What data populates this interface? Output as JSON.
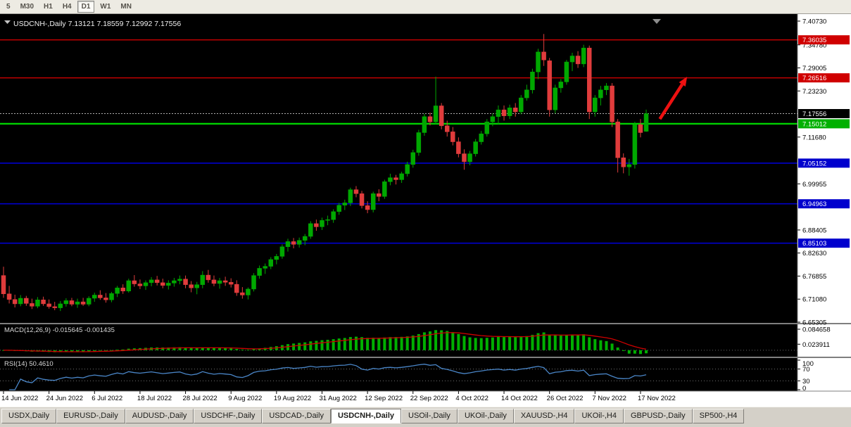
{
  "toolbar": {
    "timeframes": [
      {
        "label": "5",
        "active": false
      },
      {
        "label": "M30",
        "active": false
      },
      {
        "label": "H1",
        "active": false
      },
      {
        "label": "H4",
        "active": false
      },
      {
        "label": "D1",
        "active": true
      },
      {
        "label": "W1",
        "active": false
      },
      {
        "label": "MN",
        "active": false
      }
    ]
  },
  "chart": {
    "title": "USDCNH-,Daily",
    "quote_ohlc": "7.13121 7.18559 7.12992 7.17556",
    "colors": {
      "background": "#000000",
      "bull": "#00a800",
      "bear": "#e03c3c",
      "axis_bg": "#ffffff",
      "axis_text": "#000000",
      "separator": "#7f7f7f",
      "macd_histogram": "#00b000",
      "macd_signal": "#d00000",
      "rsi_line": "#4a86c8",
      "title_text": "#f0f0f0",
      "panel_label_text": "#d9d9d9"
    },
    "hlines": [
      {
        "value": "7.36035",
        "color": "#cc0000",
        "width": 1.4
      },
      {
        "value": "7.26516",
        "color": "#cc0000",
        "width": 1.4
      },
      {
        "value": "7.15012",
        "color": "#00d200",
        "width": 2.4
      },
      {
        "value": "7.05152",
        "color": "#0000cd",
        "width": 1.6
      },
      {
        "value": "6.94963",
        "color": "#0000cd",
        "width": 1.6
      },
      {
        "value": "6.85103",
        "color": "#0000cd",
        "width": 1.6
      }
    ],
    "bid_line": {
      "value": "7.17556",
      "color": "#b0b0b0"
    },
    "price_axis_labels": [
      "7.40730",
      "7.34780",
      "7.29005",
      "7.23230",
      "7.11680",
      "6.99955",
      "6.88405",
      "6.82630",
      "6.76855",
      "6.71080",
      "6.65305"
    ],
    "price_badges": [
      {
        "value": "7.36035",
        "color": "#d00000"
      },
      {
        "value": "7.26516",
        "color": "#d00000"
      },
      {
        "value": "7.17556",
        "color": "#000000"
      },
      {
        "value": "7.15012",
        "color": "#00b000"
      },
      {
        "value": "7.05152",
        "color": "#0000cd"
      },
      {
        "value": "6.94963",
        "color": "#0000cd"
      },
      {
        "value": "6.85103",
        "color": "#0000cd"
      }
    ],
    "arrow": {
      "from_index": 115.4,
      "from_value": 7.162,
      "to_index": 120.2,
      "to_value": 7.268,
      "color": "#ee1111"
    }
  },
  "chart_data": {
    "type": "candlestick",
    "symbol": "USDCNH-",
    "timeframe": "Daily",
    "y_range": [
      6.65305,
      7.4073
    ],
    "x_axis_labels": [
      {
        "label": "14 Jun 2022",
        "index": 0
      },
      {
        "label": "24 Jun 2022",
        "index": 8
      },
      {
        "label": "6 Jul 2022",
        "index": 16
      },
      {
        "label": "18 Jul 2022",
        "index": 24
      },
      {
        "label": "28 Jul 2022",
        "index": 32
      },
      {
        "label": "9 Aug 2022",
        "index": 40
      },
      {
        "label": "19 Aug 2022",
        "index": 48
      },
      {
        "label": "31 Aug 2022",
        "index": 56
      },
      {
        "label": "12 Sep 2022",
        "index": 64
      },
      {
        "label": "22 Sep 2022",
        "index": 72
      },
      {
        "label": "4 Oct 2022",
        "index": 80
      },
      {
        "label": "14 Oct 2022",
        "index": 88
      },
      {
        "label": "26 Oct 2022",
        "index": 96
      },
      {
        "label": "7 Nov 2022",
        "index": 104
      },
      {
        "label": "17 Nov 2022",
        "index": 112
      }
    ],
    "ohlc": [
      [
        6.77,
        6.792,
        6.714,
        6.724
      ],
      [
        6.724,
        6.744,
        6.7,
        6.71
      ],
      [
        6.71,
        6.722,
        6.69,
        6.699
      ],
      [
        6.699,
        6.721,
        6.693,
        6.713
      ],
      [
        6.713,
        6.719,
        6.694,
        6.7
      ],
      [
        6.7,
        6.712,
        6.686,
        6.693
      ],
      [
        6.693,
        6.716,
        6.688,
        6.709
      ],
      [
        6.709,
        6.717,
        6.694,
        6.699
      ],
      [
        6.699,
        6.71,
        6.687,
        6.692
      ],
      [
        6.692,
        6.704,
        6.683,
        6.689
      ],
      [
        6.689,
        6.706,
        6.681,
        6.699
      ],
      [
        6.699,
        6.713,
        6.692,
        6.707
      ],
      [
        6.707,
        6.714,
        6.693,
        6.698
      ],
      [
        6.698,
        6.712,
        6.689,
        6.704
      ],
      [
        6.704,
        6.714,
        6.694,
        6.698
      ],
      [
        6.698,
        6.718,
        6.693,
        6.713
      ],
      [
        6.713,
        6.727,
        6.704,
        6.721
      ],
      [
        6.721,
        6.733,
        6.709,
        6.714
      ],
      [
        6.714,
        6.726,
        6.702,
        6.709
      ],
      [
        6.709,
        6.729,
        6.703,
        6.725
      ],
      [
        6.725,
        6.744,
        6.716,
        6.739
      ],
      [
        6.739,
        6.748,
        6.724,
        6.731
      ],
      [
        6.731,
        6.762,
        6.727,
        6.757
      ],
      [
        6.757,
        6.771,
        6.742,
        6.749
      ],
      [
        6.749,
        6.76,
        6.736,
        6.744
      ],
      [
        6.744,
        6.758,
        6.734,
        6.752
      ],
      [
        6.752,
        6.766,
        6.743,
        6.759
      ],
      [
        6.759,
        6.769,
        6.745,
        6.752
      ],
      [
        6.752,
        6.762,
        6.738,
        6.745
      ],
      [
        6.745,
        6.758,
        6.735,
        6.751
      ],
      [
        6.751,
        6.764,
        6.742,
        6.757
      ],
      [
        6.757,
        6.77,
        6.748,
        6.761
      ],
      [
        6.761,
        6.77,
        6.738,
        6.747
      ],
      [
        6.747,
        6.756,
        6.728,
        6.739
      ],
      [
        6.739,
        6.754,
        6.723,
        6.747
      ],
      [
        6.747,
        6.781,
        6.738,
        6.771
      ],
      [
        6.771,
        6.784,
        6.752,
        6.759
      ],
      [
        6.759,
        6.77,
        6.743,
        6.75
      ],
      [
        6.75,
        6.764,
        6.737,
        6.757
      ],
      [
        6.757,
        6.767,
        6.744,
        6.753
      ],
      [
        6.753,
        6.763,
        6.74,
        6.748
      ],
      [
        6.748,
        6.758,
        6.719,
        6.727
      ],
      [
        6.727,
        6.741,
        6.712,
        6.721
      ],
      [
        6.721,
        6.74,
        6.71,
        6.736
      ],
      [
        6.736,
        6.776,
        6.73,
        6.77
      ],
      [
        6.77,
        6.795,
        6.762,
        6.788
      ],
      [
        6.788,
        6.8,
        6.774,
        6.793
      ],
      [
        6.793,
        6.816,
        6.786,
        6.81
      ],
      [
        6.81,
        6.824,
        6.798,
        6.818
      ],
      [
        6.818,
        6.848,
        6.812,
        6.842
      ],
      [
        6.842,
        6.862,
        6.83,
        6.855
      ],
      [
        6.855,
        6.864,
        6.838,
        6.848
      ],
      [
        6.848,
        6.865,
        6.84,
        6.858
      ],
      [
        6.858,
        6.874,
        6.846,
        6.868
      ],
      [
        6.868,
        6.906,
        6.862,
        6.9
      ],
      [
        6.9,
        6.91,
        6.882,
        6.892
      ],
      [
        6.892,
        6.915,
        6.884,
        6.908
      ],
      [
        6.908,
        6.92,
        6.896,
        6.91
      ],
      [
        6.91,
        6.936,
        6.902,
        6.93
      ],
      [
        6.93,
        6.952,
        6.922,
        6.946
      ],
      [
        6.946,
        6.96,
        6.934,
        6.952
      ],
      [
        6.952,
        6.99,
        6.944,
        6.985
      ],
      [
        6.985,
        6.994,
        6.966,
        6.975
      ],
      [
        6.975,
        6.982,
        6.938,
        6.945
      ],
      [
        6.945,
        6.956,
        6.926,
        6.935
      ],
      [
        6.935,
        6.98,
        6.928,
        6.975
      ],
      [
        6.975,
        6.986,
        6.956,
        6.968
      ],
      [
        6.968,
        7.01,
        6.962,
        7.005
      ],
      [
        7.005,
        7.025,
        6.996,
        7.015
      ],
      [
        7.015,
        7.022,
        6.998,
        7.01
      ],
      [
        7.01,
        7.03,
        7.002,
        7.025
      ],
      [
        7.025,
        7.055,
        7.018,
        7.048
      ],
      [
        7.048,
        7.085,
        7.04,
        7.078
      ],
      [
        7.078,
        7.135,
        7.07,
        7.128
      ],
      [
        7.128,
        7.175,
        7.12,
        7.168
      ],
      [
        7.168,
        7.178,
        7.146,
        7.155
      ],
      [
        7.155,
        7.268,
        7.148,
        7.195
      ],
      [
        7.195,
        7.202,
        7.136,
        7.145
      ],
      [
        7.145,
        7.158,
        7.118,
        7.13
      ],
      [
        7.13,
        7.142,
        7.096,
        7.105
      ],
      [
        7.105,
        7.116,
        7.066,
        7.075
      ],
      [
        7.075,
        7.086,
        7.035,
        7.055
      ],
      [
        7.055,
        7.082,
        7.046,
        7.075
      ],
      [
        7.075,
        7.112,
        7.068,
        7.105
      ],
      [
        7.105,
        7.132,
        7.098,
        7.125
      ],
      [
        7.125,
        7.162,
        7.118,
        7.155
      ],
      [
        7.155,
        7.176,
        7.144,
        7.168
      ],
      [
        7.168,
        7.196,
        7.148,
        7.185
      ],
      [
        7.185,
        7.196,
        7.158,
        7.17
      ],
      [
        7.17,
        7.198,
        7.162,
        7.19
      ],
      [
        7.19,
        7.202,
        7.168,
        7.18
      ],
      [
        7.18,
        7.222,
        7.174,
        7.215
      ],
      [
        7.215,
        7.248,
        7.208,
        7.235
      ],
      [
        7.235,
        7.288,
        7.226,
        7.28
      ],
      [
        7.28,
        7.338,
        7.262,
        7.33
      ],
      [
        7.33,
        7.375,
        7.295,
        7.31
      ],
      [
        7.308,
        7.315,
        7.168,
        7.185
      ],
      [
        7.185,
        7.248,
        7.176,
        7.24
      ],
      [
        7.24,
        7.262,
        7.228,
        7.255
      ],
      [
        7.255,
        7.31,
        7.248,
        7.305
      ],
      [
        7.305,
        7.328,
        7.282,
        7.32
      ],
      [
        7.32,
        7.332,
        7.29,
        7.3
      ],
      [
        7.3,
        7.348,
        7.292,
        7.34
      ],
      [
        7.34,
        7.346,
        7.162,
        7.18
      ],
      [
        7.18,
        7.222,
        7.168,
        7.215
      ],
      [
        7.215,
        7.245,
        7.196,
        7.235
      ],
      [
        7.235,
        7.252,
        7.222,
        7.245
      ],
      [
        7.245,
        7.252,
        7.142,
        7.155
      ],
      [
        7.155,
        7.162,
        7.028,
        7.065
      ],
      [
        7.065,
        7.076,
        7.026,
        7.042
      ],
      [
        7.042,
        7.062,
        7.02,
        7.048
      ],
      [
        7.048,
        7.155,
        7.038,
        7.148
      ],
      [
        7.148,
        7.162,
        7.116,
        7.128
      ],
      [
        7.13121,
        7.18559,
        7.12992,
        7.17556
      ]
    ]
  },
  "macd": {
    "title": "MACD(12,26,9)",
    "values": "-0.015645 -0.001435",
    "fast": 12,
    "slow": 26,
    "signal": 9,
    "axis_labels": [
      "0.084658",
      "0.023911"
    ]
  },
  "rsi": {
    "title": "RSI(14)",
    "value": "50.4610",
    "period": 14,
    "levels": [
      70,
      30
    ],
    "axis_labels": [
      "100",
      "70",
      "30",
      "0"
    ]
  },
  "tabs": [
    {
      "label": "USDX,Daily",
      "active": false
    },
    {
      "label": "EURUSD-,Daily",
      "active": false
    },
    {
      "label": "AUDUSD-,Daily",
      "active": false
    },
    {
      "label": "USDCHF-,Daily",
      "active": false
    },
    {
      "label": "USDCAD-,Daily",
      "active": false
    },
    {
      "label": "USDCNH-,Daily",
      "active": true
    },
    {
      "label": "USOil-,Daily",
      "active": false
    },
    {
      "label": "UKOil-,Daily",
      "active": false
    },
    {
      "label": "XAUUSD-,H4",
      "active": false
    },
    {
      "label": "UKOil-,H4",
      "active": false
    },
    {
      "label": "GBPUSD-,Daily",
      "active": false
    },
    {
      "label": "SP500-,H4",
      "active": false
    }
  ]
}
